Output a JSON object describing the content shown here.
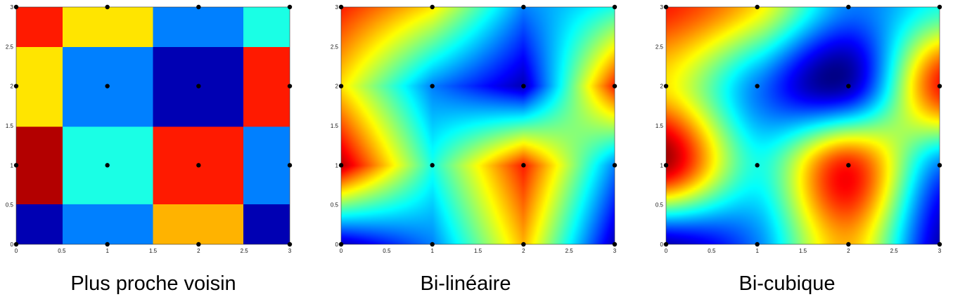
{
  "chart_data": [
    {
      "type": "heatmap",
      "title": "Plus proche voisin",
      "interpolation": "nearest",
      "colormap": "jet",
      "x": [
        0,
        1,
        2,
        3
      ],
      "y": [
        0,
        1,
        2,
        3
      ],
      "z": [
        [
          0.05,
          0.25,
          0.7,
          0.05
        ],
        [
          0.95,
          0.4,
          0.85,
          0.25
        ],
        [
          0.65,
          0.25,
          0.05,
          0.85
        ],
        [
          0.85,
          0.65,
          0.25,
          0.4
        ]
      ],
      "xlim": [
        0,
        3
      ],
      "ylim": [
        0,
        3
      ],
      "xticks": [
        "0",
        "0.5",
        "1",
        "1.5",
        "2",
        "2.5",
        "3"
      ],
      "yticks": [
        "0",
        "0.5",
        "1",
        "1.5",
        "2",
        "2.5",
        "3"
      ],
      "grid": false
    },
    {
      "type": "heatmap",
      "title": "Bi-linéaire",
      "interpolation": "bilinear",
      "colormap": "jet",
      "x": [
        0,
        1,
        2,
        3
      ],
      "y": [
        0,
        1,
        2,
        3
      ],
      "z": [
        [
          0.05,
          0.25,
          0.7,
          0.05
        ],
        [
          0.95,
          0.4,
          0.85,
          0.25
        ],
        [
          0.65,
          0.25,
          0.05,
          0.85
        ],
        [
          0.85,
          0.65,
          0.25,
          0.4
        ]
      ],
      "xlim": [
        0,
        3
      ],
      "ylim": [
        0,
        3
      ],
      "xticks": [
        "0",
        "0.5",
        "1",
        "1.5",
        "2",
        "2.5",
        "3"
      ],
      "yticks": [
        "0",
        "0.5",
        "1",
        "1.5",
        "2",
        "2.5",
        "3"
      ],
      "grid": false
    },
    {
      "type": "heatmap",
      "title": "Bi-cubique",
      "interpolation": "bicubic",
      "colormap": "jet",
      "x": [
        0,
        1,
        2,
        3
      ],
      "y": [
        0,
        1,
        2,
        3
      ],
      "z": [
        [
          0.05,
          0.25,
          0.7,
          0.05
        ],
        [
          0.95,
          0.4,
          0.85,
          0.25
        ],
        [
          0.65,
          0.25,
          0.05,
          0.85
        ],
        [
          0.85,
          0.65,
          0.25,
          0.4
        ]
      ],
      "xlim": [
        0,
        3
      ],
      "ylim": [
        0,
        3
      ],
      "xticks": [
        "0",
        "0.5",
        "1",
        "1.5",
        "2",
        "2.5",
        "3"
      ],
      "yticks": [
        "0",
        "0.5",
        "1",
        "1.5",
        "2",
        "2.5",
        "3"
      ],
      "grid": false
    }
  ]
}
